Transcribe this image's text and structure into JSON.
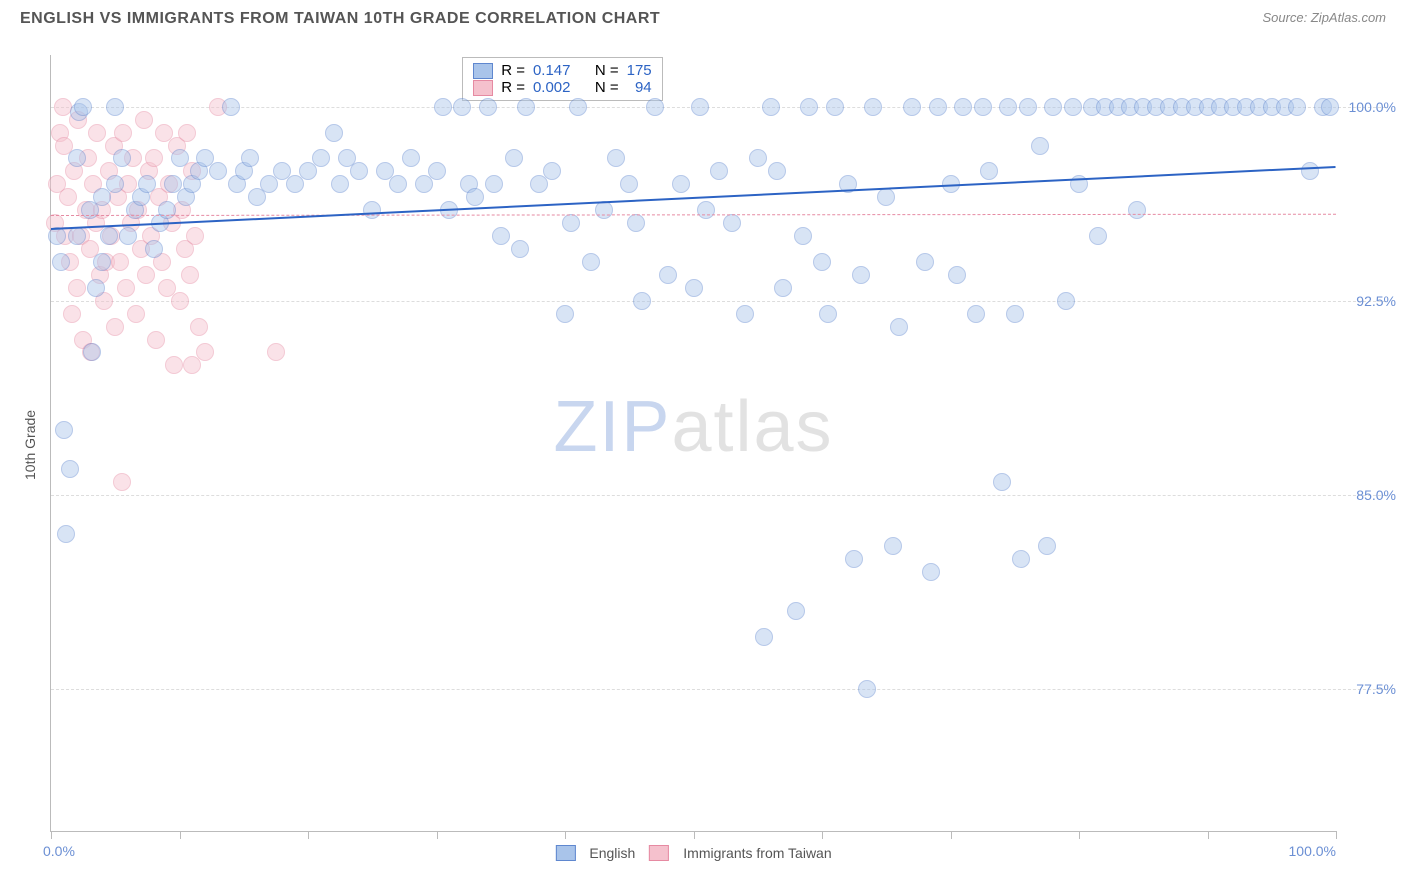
{
  "header": {
    "title": "ENGLISH VS IMMIGRANTS FROM TAIWAN 10TH GRADE CORRELATION CHART",
    "source": "Source: ZipAtlas.com"
  },
  "watermark": {
    "zip": "ZIP",
    "atlas": "atlas"
  },
  "chart": {
    "type": "scatter",
    "xlim": [
      0,
      100
    ],
    "ylim": [
      72,
      102
    ],
    "y_axis_title": "10th Grade",
    "y_ticks": [
      {
        "v": 100.0,
        "label": "100.0%"
      },
      {
        "v": 92.5,
        "label": "92.5%"
      },
      {
        "v": 85.0,
        "label": "85.0%"
      },
      {
        "v": 77.5,
        "label": "77.5%"
      }
    ],
    "x_ticks": [
      0,
      10,
      20,
      30,
      40,
      50,
      60,
      70,
      80,
      90,
      100
    ],
    "x_label_min": "0.0%",
    "x_label_max": "100.0%",
    "grid_color": "#dddddd",
    "axis_color": "#bbbbbb",
    "tick_label_color": "#6b8fd4",
    "marker_radius": 9,
    "marker_opacity": 0.45,
    "series": {
      "english": {
        "label": "English",
        "fill": "#a9c4ea",
        "stroke": "#5f87cf",
        "trend": {
          "y_at_xmin": 95.3,
          "y_at_xmax": 97.7,
          "color": "#2c63c4",
          "width": 2,
          "dash": "solid"
        },
        "R": "0.147",
        "N": "175",
        "points": [
          [
            0.5,
            95.0
          ],
          [
            0.8,
            94.0
          ],
          [
            1.0,
            87.5
          ],
          [
            1.2,
            83.5
          ],
          [
            1.5,
            86.0
          ],
          [
            2.0,
            95.0
          ],
          [
            2.0,
            98.0
          ],
          [
            2.2,
            99.8
          ],
          [
            2.5,
            100.0
          ],
          [
            3.0,
            96.0
          ],
          [
            3.2,
            90.5
          ],
          [
            3.5,
            93.0
          ],
          [
            4.0,
            94.0
          ],
          [
            4.0,
            96.5
          ],
          [
            4.5,
            95.0
          ],
          [
            5.0,
            97.0
          ],
          [
            5.0,
            100.0
          ],
          [
            5.5,
            98.0
          ],
          [
            6.0,
            95.0
          ],
          [
            6.5,
            96.0
          ],
          [
            7.0,
            96.5
          ],
          [
            7.5,
            97.0
          ],
          [
            8.0,
            94.5
          ],
          [
            8.5,
            95.5
          ],
          [
            9.0,
            96.0
          ],
          [
            9.5,
            97.0
          ],
          [
            10.0,
            98.0
          ],
          [
            10.5,
            96.5
          ],
          [
            11.0,
            97.0
          ],
          [
            11.5,
            97.5
          ],
          [
            12.0,
            98.0
          ],
          [
            13.0,
            97.5
          ],
          [
            14.0,
            100.0
          ],
          [
            14.5,
            97.0
          ],
          [
            15.0,
            97.5
          ],
          [
            15.5,
            98.0
          ],
          [
            16.0,
            96.5
          ],
          [
            17.0,
            97.0
          ],
          [
            18.0,
            97.5
          ],
          [
            19.0,
            97.0
          ],
          [
            20.0,
            97.5
          ],
          [
            21.0,
            98.0
          ],
          [
            22.0,
            99.0
          ],
          [
            22.5,
            97.0
          ],
          [
            23.0,
            98.0
          ],
          [
            24.0,
            97.5
          ],
          [
            25.0,
            96.0
          ],
          [
            26.0,
            97.5
          ],
          [
            27.0,
            97.0
          ],
          [
            28.0,
            98.0
          ],
          [
            29.0,
            97.0
          ],
          [
            30.0,
            97.5
          ],
          [
            30.5,
            100.0
          ],
          [
            31.0,
            96.0
          ],
          [
            32.0,
            100.0
          ],
          [
            32.5,
            97.0
          ],
          [
            33.0,
            96.5
          ],
          [
            34.0,
            100.0
          ],
          [
            34.5,
            97.0
          ],
          [
            35.0,
            95.0
          ],
          [
            36.0,
            98.0
          ],
          [
            36.5,
            94.5
          ],
          [
            37.0,
            100.0
          ],
          [
            38.0,
            97.0
          ],
          [
            39.0,
            97.5
          ],
          [
            40.0,
            92.0
          ],
          [
            40.5,
            95.5
          ],
          [
            41.0,
            100.0
          ],
          [
            42.0,
            94.0
          ],
          [
            43.0,
            96.0
          ],
          [
            44.0,
            98.0
          ],
          [
            45.0,
            97.0
          ],
          [
            45.5,
            95.5
          ],
          [
            46.0,
            92.5
          ],
          [
            47.0,
            100.0
          ],
          [
            48.0,
            93.5
          ],
          [
            49.0,
            97.0
          ],
          [
            50.0,
            93.0
          ],
          [
            50.5,
            100.0
          ],
          [
            51.0,
            96.0
          ],
          [
            52.0,
            97.5
          ],
          [
            53.0,
            95.5
          ],
          [
            54.0,
            92.0
          ],
          [
            55.0,
            98.0
          ],
          [
            55.5,
            79.5
          ],
          [
            56.0,
            100.0
          ],
          [
            56.5,
            97.5
          ],
          [
            57.0,
            93.0
          ],
          [
            58.0,
            80.5
          ],
          [
            58.5,
            95.0
          ],
          [
            59.0,
            100.0
          ],
          [
            60.0,
            94.0
          ],
          [
            60.5,
            92.0
          ],
          [
            61.0,
            100.0
          ],
          [
            62.0,
            97.0
          ],
          [
            62.5,
            82.5
          ],
          [
            63.0,
            93.5
          ],
          [
            63.5,
            77.5
          ],
          [
            64.0,
            100.0
          ],
          [
            65.0,
            96.5
          ],
          [
            65.5,
            83.0
          ],
          [
            66.0,
            91.5
          ],
          [
            67.0,
            100.0
          ],
          [
            68.0,
            94.0
          ],
          [
            68.5,
            82.0
          ],
          [
            69.0,
            100.0
          ],
          [
            70.0,
            97.0
          ],
          [
            70.5,
            93.5
          ],
          [
            71.0,
            100.0
          ],
          [
            72.0,
            92.0
          ],
          [
            72.5,
            100.0
          ],
          [
            73.0,
            97.5
          ],
          [
            74.0,
            85.5
          ],
          [
            74.5,
            100.0
          ],
          [
            75.0,
            92.0
          ],
          [
            75.5,
            82.5
          ],
          [
            76.0,
            100.0
          ],
          [
            77.0,
            98.5
          ],
          [
            77.5,
            83.0
          ],
          [
            78.0,
            100.0
          ],
          [
            79.0,
            92.5
          ],
          [
            79.5,
            100.0
          ],
          [
            80.0,
            97.0
          ],
          [
            81.0,
            100.0
          ],
          [
            81.5,
            95.0
          ],
          [
            82.0,
            100.0
          ],
          [
            83.0,
            100.0
          ],
          [
            84.0,
            100.0
          ],
          [
            84.5,
            96.0
          ],
          [
            85.0,
            100.0
          ],
          [
            86.0,
            100.0
          ],
          [
            87.0,
            100.0
          ],
          [
            88.0,
            100.0
          ],
          [
            89.0,
            100.0
          ],
          [
            90.0,
            100.0
          ],
          [
            91.0,
            100.0
          ],
          [
            92.0,
            100.0
          ],
          [
            93.0,
            100.0
          ],
          [
            94.0,
            100.0
          ],
          [
            95.0,
            100.0
          ],
          [
            96.0,
            100.0
          ],
          [
            97.0,
            100.0
          ],
          [
            98.0,
            97.5
          ],
          [
            99.0,
            100.0
          ],
          [
            99.5,
            100.0
          ]
        ]
      },
      "taiwan": {
        "label": "Immigrants from Taiwan",
        "fill": "#f5c1cd",
        "stroke": "#e68aa2",
        "trend": {
          "y_at_xmin": 95.8,
          "y_at_xmax": 95.85,
          "color": "#e68aa2",
          "width": 1,
          "dash": "dashed"
        },
        "R": "0.002",
        "N": "94",
        "points": [
          [
            0.3,
            95.5
          ],
          [
            0.5,
            97.0
          ],
          [
            0.7,
            99.0
          ],
          [
            0.9,
            100.0
          ],
          [
            1.0,
            98.5
          ],
          [
            1.1,
            95.0
          ],
          [
            1.3,
            96.5
          ],
          [
            1.5,
            94.0
          ],
          [
            1.6,
            92.0
          ],
          [
            1.8,
            97.5
          ],
          [
            2.0,
            93.0
          ],
          [
            2.1,
            99.5
          ],
          [
            2.3,
            95.0
          ],
          [
            2.5,
            91.0
          ],
          [
            2.7,
            96.0
          ],
          [
            2.9,
            98.0
          ],
          [
            3.0,
            94.5
          ],
          [
            3.1,
            90.5
          ],
          [
            3.3,
            97.0
          ],
          [
            3.5,
            95.5
          ],
          [
            3.6,
            99.0
          ],
          [
            3.8,
            93.5
          ],
          [
            4.0,
            96.0
          ],
          [
            4.1,
            92.5
          ],
          [
            4.3,
            94.0
          ],
          [
            4.5,
            97.5
          ],
          [
            4.7,
            95.0
          ],
          [
            4.9,
            98.5
          ],
          [
            5.0,
            91.5
          ],
          [
            5.2,
            96.5
          ],
          [
            5.4,
            94.0
          ],
          [
            5.6,
            99.0
          ],
          [
            5.8,
            93.0
          ],
          [
            6.0,
            97.0
          ],
          [
            6.2,
            95.5
          ],
          [
            6.4,
            98.0
          ],
          [
            6.6,
            92.0
          ],
          [
            6.8,
            96.0
          ],
          [
            7.0,
            94.5
          ],
          [
            7.2,
            99.5
          ],
          [
            7.4,
            93.5
          ],
          [
            7.6,
            97.5
          ],
          [
            7.8,
            95.0
          ],
          [
            8.0,
            98.0
          ],
          [
            8.2,
            91.0
          ],
          [
            8.4,
            96.5
          ],
          [
            8.6,
            94.0
          ],
          [
            8.8,
            99.0
          ],
          [
            9.0,
            93.0
          ],
          [
            9.2,
            97.0
          ],
          [
            9.4,
            95.5
          ],
          [
            9.6,
            90.0
          ],
          [
            9.8,
            98.5
          ],
          [
            10.0,
            92.5
          ],
          [
            10.2,
            96.0
          ],
          [
            10.4,
            94.5
          ],
          [
            10.6,
            99.0
          ],
          [
            10.8,
            93.5
          ],
          [
            11.0,
            97.5
          ],
          [
            11.2,
            95.0
          ],
          [
            11.5,
            91.5
          ],
          [
            12.0,
            90.5
          ],
          [
            13.0,
            100.0
          ],
          [
            5.5,
            85.5
          ],
          [
            17.5,
            90.5
          ],
          [
            11.0,
            90.0
          ]
        ]
      }
    },
    "legend_top": {
      "R_label": "R =",
      "N_label": "N ="
    },
    "legend_bottom": {
      "english": "English",
      "taiwan": "Immigrants from Taiwan"
    }
  }
}
